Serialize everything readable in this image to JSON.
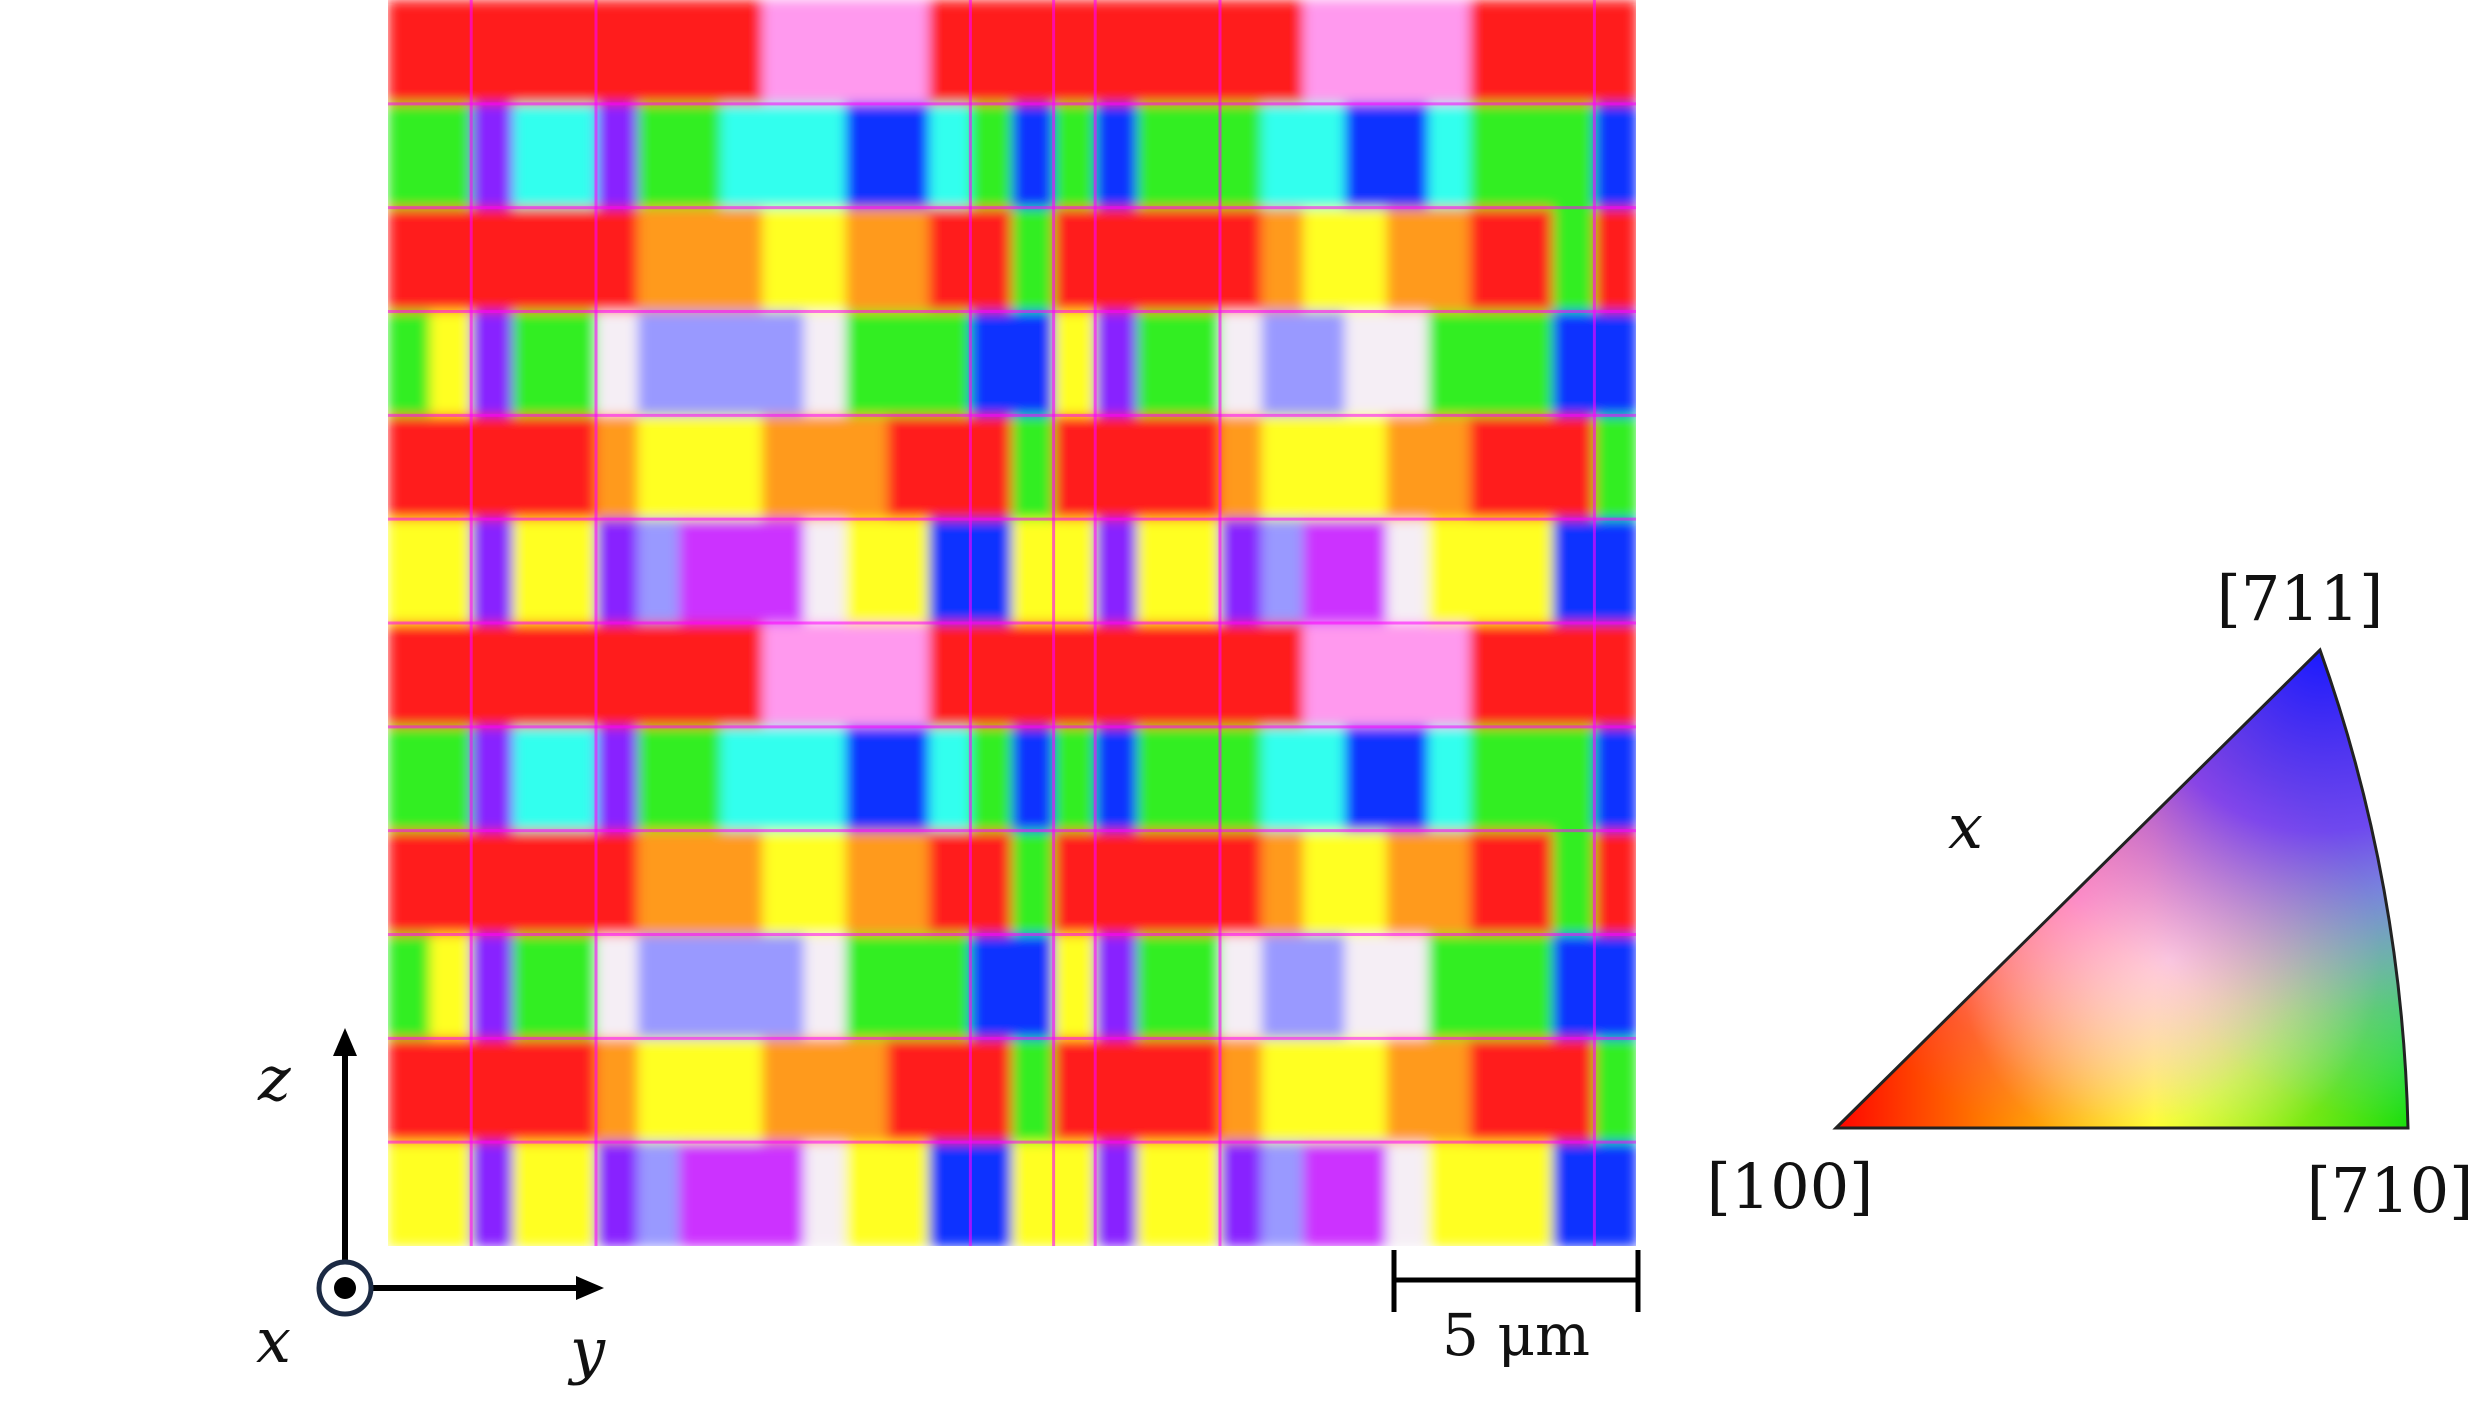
{
  "orientation_map": {
    "columns": [
      "R",
      "R",
      "V",
      "G",
      "G",
      "V",
      "R",
      "R",
      "O",
      "Y",
      "Y",
      "Y",
      "Y",
      "R",
      "R",
      "G",
      "B",
      "G",
      "V",
      "R",
      "R",
      "O",
      "Y",
      "Y",
      "Y",
      "Y",
      "R",
      "R",
      "G",
      "B"
    ],
    "rows": [
      {
        "kind": "red-band",
        "pattern": [
          "R",
          "R",
          "R",
          "R",
          "R",
          "R",
          "R",
          "R",
          "R",
          "P",
          "P",
          "P",
          "P",
          "R",
          "R",
          "R",
          "R",
          "R",
          "R",
          "R",
          "R",
          "R",
          "P",
          "P",
          "P",
          "P",
          "R",
          "R",
          "R",
          "R"
        ]
      },
      {
        "kind": "green-band",
        "pattern": [
          "G",
          "G",
          "V",
          "C",
          "C",
          "V",
          "G",
          "G",
          "C",
          "C",
          "C",
          "B",
          "B",
          "C",
          "G",
          "B",
          "G",
          "B",
          "G",
          "G",
          "G",
          "C",
          "C",
          "B",
          "B",
          "C",
          "G",
          "G",
          "G",
          "B"
        ]
      },
      {
        "kind": "red-band",
        "pattern": [
          "R",
          "R",
          "R",
          "R",
          "R",
          "R",
          "O",
          "O",
          "O",
          "Y",
          "Y",
          "O",
          "O",
          "R",
          "R",
          "G",
          "R",
          "R",
          "R",
          "R",
          "R",
          "O",
          "Y",
          "Y",
          "O",
          "O",
          "R",
          "R",
          "G",
          "R"
        ]
      },
      {
        "kind": "lilac-band",
        "pattern": [
          "G",
          "Y",
          "V",
          "G",
          "G",
          "W",
          "L",
          "L",
          "L",
          "L",
          "W",
          "G",
          "G",
          "G",
          "B",
          "B",
          "Y",
          "V",
          "G",
          "G",
          "W",
          "L",
          "L",
          "W",
          "W",
          "G",
          "G",
          "G",
          "B",
          "B"
        ]
      },
      {
        "kind": "red-band",
        "pattern": [
          "R",
          "R",
          "R",
          "R",
          "R",
          "O",
          "Y",
          "Y",
          "Y",
          "O",
          "O",
          "O",
          "R",
          "R",
          "R",
          "G",
          "R",
          "R",
          "R",
          "R",
          "O",
          "Y",
          "Y",
          "Y",
          "O",
          "O",
          "R",
          "R",
          "R",
          "G"
        ]
      },
      {
        "kind": "purple-band",
        "pattern": [
          "Y",
          "Y",
          "V",
          "Y",
          "Y",
          "V",
          "L",
          "M",
          "M",
          "M",
          "W",
          "Y",
          "Y",
          "B",
          "B",
          "Y",
          "Y",
          "V",
          "Y",
          "Y",
          "V",
          "L",
          "M",
          "M",
          "W",
          "Y",
          "Y",
          "Y",
          "B",
          "B"
        ]
      }
    ]
  },
  "axes_triad": {
    "z_label": "z",
    "y_label": "y",
    "x_label": "x"
  },
  "scale_bar": {
    "label": "5 μm",
    "length_value": 5,
    "unit": "μm"
  },
  "ipf_key": {
    "corner_top": "[711]",
    "corner_left": "[100]",
    "corner_right": "[710]",
    "reference_axis": "x",
    "corner_colors": {
      "left": "#ff0000",
      "right": "#00dd00",
      "top": "#1a1aff"
    }
  },
  "palette": {
    "R": "#ff1f1f",
    "O": "#ff9a1a",
    "Y": "#ffff22",
    "G": "#33ee22",
    "C": "#33ffee",
    "B": "#1133ff",
    "V": "#8822ff",
    "L": "#9999ff",
    "M": "#cc33ff",
    "W": "#f5eef5",
    "P": "#ff99ee",
    "boundary": "#ff00ff"
  }
}
